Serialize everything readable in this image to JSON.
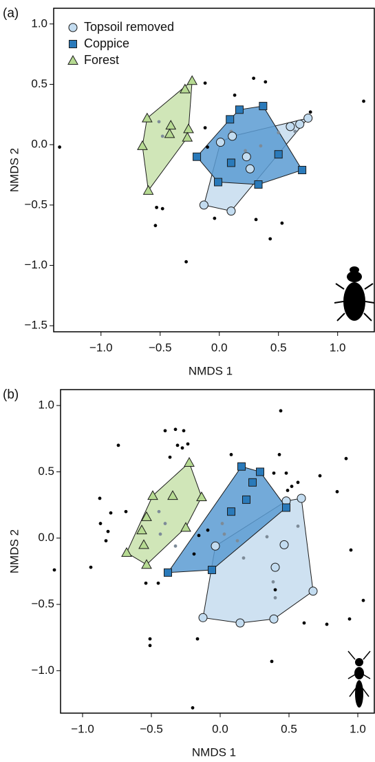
{
  "chart_data": [
    {
      "type": "scatter",
      "panel_label": "(a)",
      "xlabel": "NMDS 1",
      "ylabel": "NMDS 2",
      "xlim": [
        -1.4,
        1.31
      ],
      "ylim": [
        -1.55,
        1.13
      ],
      "xticks": [
        {
          "value": -1,
          "label": "−1.0"
        },
        {
          "value": -0.5,
          "label": "−0.5"
        },
        {
          "value": 0,
          "label": "0.0"
        },
        0.5,
        {
          "value": 1,
          "label": "1.0"
        }
      ],
      "yticks": [
        {
          "value": -1.5,
          "label": "−1.5"
        },
        {
          "value": -1,
          "label": "−1.0"
        },
        {
          "value": -0.5,
          "label": "−0.5"
        },
        {
          "value": 0,
          "label": "0.0"
        },
        0.5,
        {
          "value": 1,
          "label": "1.0"
        }
      ],
      "legend": "upper left",
      "series": [
        {
          "name": "Topsoil removed",
          "color": "#c3dcf0",
          "hull": "#c6dcee",
          "marker": "circle",
          "x": [
            0.75,
            0.68,
            0.6,
            0.11,
            0.01,
            0.23,
            0.26,
            -0.13,
            0.1
          ],
          "values": [
            0.22,
            0.17,
            0.15,
            0.07,
            0.02,
            -0.1,
            -0.2,
            -0.5,
            -0.55
          ]
        },
        {
          "name": "Coppice",
          "color": "#2a7aba",
          "hull": "#5a9bd2",
          "marker": "square",
          "x": [
            0.37,
            0.17,
            0.09,
            -0.19,
            0.1,
            -0.01,
            0.33,
            0.5,
            0.7
          ],
          "values": [
            0.32,
            0.29,
            0.21,
            -0.1,
            -0.15,
            -0.31,
            -0.33,
            -0.08,
            -0.21
          ]
        },
        {
          "name": "Forest",
          "color": "#b6da92",
          "hull": "#c8e2ac",
          "marker": "triangle",
          "x": [
            -0.23,
            -0.29,
            -0.61,
            -0.41,
            -0.26,
            -0.42,
            -0.27,
            -0.65,
            -0.6
          ],
          "values": [
            0.53,
            0.46,
            0.22,
            0.16,
            0.13,
            0.09,
            0.06,
            -0.01,
            -0.38
          ]
        },
        {
          "color": "#000000",
          "marker": "dot",
          "x": [
            -1.35,
            -0.12,
            0.29,
            0.39,
            0.13,
            0.77,
            1.22,
            -0.12,
            -0.1,
            -0.53,
            -0.48,
            -0.04,
            0.53,
            0.43,
            -0.28,
            -0.54,
            0.31
          ],
          "values": [
            -0.02,
            0.51,
            0.55,
            0.52,
            0.41,
            0.27,
            0.36,
            0.14,
            -0.02,
            -0.52,
            -0.53,
            -0.61,
            -0.65,
            -0.78,
            -0.97,
            -0.67,
            -0.62
          ]
        },
        {
          "color": "#7d8b98",
          "marker": "dot",
          "x": [
            -0.48,
            -0.51,
            0.22,
            0.35,
            0.5,
            0.64,
            0.1
          ],
          "values": [
            0.07,
            0.19,
            -0.05,
            -0.01,
            0.1,
            0.11,
            0.11
          ]
        }
      ]
    },
    {
      "type": "scatter",
      "panel_label": "(b)",
      "xlabel": "NMDS 1",
      "ylabel": "NMDS 2",
      "xlim": [
        -1.16,
        1.12
      ],
      "ylim": [
        -1.32,
        1.12
      ],
      "xticks": [
        {
          "value": -1,
          "label": "−1.0"
        },
        {
          "value": -0.5,
          "label": "−0.5"
        },
        {
          "value": 0,
          "label": "0.0"
        },
        0.5,
        {
          "value": 1,
          "label": "1.0"
        }
      ],
      "yticks": [
        {
          "value": -1,
          "label": "−1.0"
        },
        {
          "value": -0.5,
          "label": "−0.5"
        },
        {
          "value": 0,
          "label": "0.0"
        },
        0.5,
        {
          "value": 1,
          "label": "1.0"
        }
      ],
      "series": [
        {
          "color": "#c3dcf0",
          "hull": "#c6dcee",
          "marker": "circle",
          "x": [
            0.48,
            0.59,
            -0.035,
            0.465,
            0.4,
            0.675,
            0.39,
            0.145,
            -0.125
          ],
          "values": [
            0.28,
            0.3,
            -0.06,
            -0.05,
            -0.22,
            -0.4,
            -0.61,
            -0.64,
            -0.6
          ]
        },
        {
          "color": "#2a7aba",
          "hull": "#5a9bd2",
          "marker": "square",
          "x": [
            0.155,
            0.29,
            0.235,
            0.19,
            0.08,
            -0.38,
            -0.06,
            0.48
          ],
          "values": [
            0.54,
            0.5,
            0.42,
            0.29,
            0.2,
            -0.26,
            -0.24,
            0.23
          ]
        },
        {
          "color": "#b6da92",
          "hull": "#c8e2ac",
          "marker": "triangle",
          "x": [
            -0.225,
            -0.345,
            -0.49,
            -0.135,
            -0.535,
            -0.25,
            -0.57,
            -0.555,
            -0.68,
            -0.535
          ],
          "values": [
            0.57,
            0.32,
            0.32,
            0.31,
            0.16,
            0.08,
            0.06,
            -0.05,
            -0.11,
            -0.2
          ]
        },
        {
          "color": "#000000",
          "marker": "dot",
          "x": [
            0.44,
            -0.4,
            -0.325,
            -0.265,
            -0.74,
            -0.31,
            -0.275,
            -0.235,
            -0.365,
            0.08,
            0.915,
            0.43,
            0.39,
            0.48,
            0.565,
            0.725,
            0.49,
            0.52,
            0.85,
            -0.875,
            -0.795,
            -0.685,
            -0.87,
            -0.815,
            -0.83,
            0.95,
            -0.09,
            -0.155,
            -0.19,
            -1.205,
            -0.94,
            -0.54,
            -0.45,
            0.4,
            1.04,
            0.61,
            0.775,
            0.94,
            -0.51,
            -0.51,
            -0.165,
            0.375,
            -0.2
          ],
          "values": [
            0.96,
            0.81,
            0.82,
            0.81,
            0.7,
            0.7,
            0.68,
            0.71,
            0.61,
            0.63,
            0.6,
            0.63,
            0.49,
            0.49,
            0.42,
            0.47,
            0.36,
            0.39,
            0.35,
            0.3,
            0.19,
            0.2,
            0.11,
            0.05,
            -0.02,
            -0.09,
            0.06,
            0.02,
            -0.12,
            -0.24,
            -0.22,
            -0.34,
            -0.34,
            -0.39,
            -0.47,
            -0.64,
            -0.65,
            -0.61,
            -0.76,
            -0.81,
            -0.76,
            -0.93,
            -1.28
          ]
        },
        {
          "color": "#7d8b98",
          "marker": "dot",
          "x": [
            -0.445,
            -0.435,
            -0.325,
            -0.4,
            0.015,
            0.03,
            0.125,
            0.17,
            0.34,
            0.385,
            0.4,
            0.565
          ],
          "values": [
            0.2,
            0.03,
            -0.06,
            0.11,
            0.11,
            0.03,
            -0.02,
            -0.15,
            0.01,
            -0.33,
            -0.45,
            0.09
          ]
        }
      ]
    }
  ]
}
